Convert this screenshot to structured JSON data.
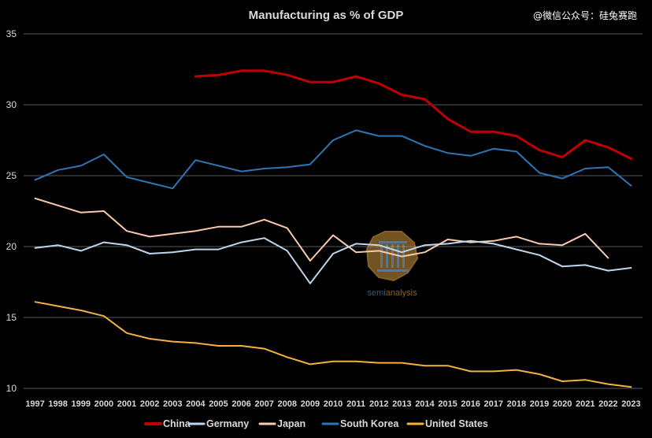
{
  "watermark": "@微信公众号：硅兔赛跑",
  "logo_text_1": "semi",
  "logo_text_2": "analysis",
  "chart_data": {
    "type": "line",
    "title": "Manufacturing as % of GDP",
    "xlabel": "",
    "ylabel": "",
    "ylim": [
      10,
      35
    ],
    "yticks": [
      10,
      15,
      20,
      25,
      30,
      35
    ],
    "grid": true,
    "legend": "bottom",
    "x": [
      1997,
      1998,
      1999,
      2000,
      2001,
      2002,
      2003,
      2004,
      2005,
      2006,
      2007,
      2008,
      2009,
      2010,
      2011,
      2012,
      2013,
      2014,
      2015,
      2016,
      2017,
      2018,
      2019,
      2020,
      2021,
      2022,
      2023
    ],
    "series": [
      {
        "name": "China",
        "color": "#c00000",
        "width": 3,
        "values": [
          null,
          null,
          null,
          null,
          null,
          null,
          null,
          32.0,
          32.1,
          32.4,
          32.4,
          32.1,
          31.6,
          31.6,
          32.0,
          31.5,
          30.7,
          30.4,
          29.0,
          28.1,
          28.1,
          27.8,
          26.8,
          26.3,
          27.5,
          27.0,
          26.2
        ]
      },
      {
        "name": "Germany",
        "color": "#bdd7ee",
        "width": 2,
        "values": [
          19.9,
          20.1,
          19.7,
          20.3,
          20.1,
          19.5,
          19.6,
          19.8,
          19.8,
          20.3,
          20.6,
          19.7,
          17.4,
          19.5,
          20.2,
          20.1,
          19.6,
          20.1,
          20.2,
          20.4,
          20.2,
          19.8,
          19.4,
          18.6,
          18.7,
          18.3,
          18.5
        ]
      },
      {
        "name": "Japan",
        "color": "#f8cbad",
        "width": 2,
        "values": [
          23.4,
          22.9,
          22.4,
          22.5,
          21.1,
          20.7,
          20.9,
          21.1,
          21.4,
          21.4,
          21.9,
          21.3,
          19.0,
          20.8,
          19.6,
          19.7,
          19.3,
          19.6,
          20.5,
          20.3,
          20.4,
          20.7,
          20.2,
          20.1,
          20.9,
          19.2,
          null
        ]
      },
      {
        "name": "South Korea",
        "color": "#2e75b6",
        "width": 2,
        "values": [
          24.7,
          25.4,
          25.7,
          26.5,
          24.9,
          24.5,
          24.1,
          26.1,
          25.7,
          25.3,
          25.5,
          25.6,
          25.8,
          27.5,
          28.2,
          27.8,
          27.8,
          27.1,
          26.6,
          26.4,
          26.9,
          26.7,
          25.2,
          24.8,
          25.5,
          25.6,
          24.3
        ]
      },
      {
        "name": "United States",
        "color": "#f4b042",
        "width": 2,
        "values": [
          16.1,
          15.8,
          15.5,
          15.1,
          13.9,
          13.5,
          13.3,
          13.2,
          13.0,
          13.0,
          12.8,
          12.2,
          11.7,
          11.9,
          11.9,
          11.8,
          11.8,
          11.6,
          11.6,
          11.2,
          11.2,
          11.3,
          11.0,
          10.5,
          10.6,
          10.3,
          10.1
        ]
      }
    ]
  }
}
